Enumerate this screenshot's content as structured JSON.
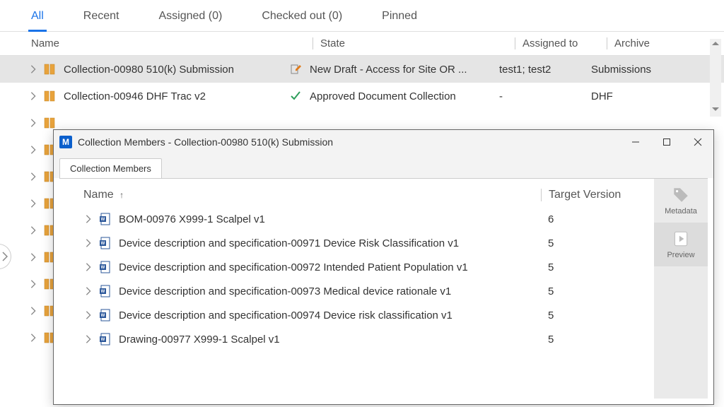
{
  "tabs": [
    {
      "label": "All",
      "active": true
    },
    {
      "label": "Recent",
      "active": false
    },
    {
      "label": "Assigned (0)",
      "active": false
    },
    {
      "label": "Checked out (0)",
      "active": false
    },
    {
      "label": "Pinned",
      "active": false
    }
  ],
  "columns": {
    "name": "Name",
    "state": "State",
    "assigned": "Assigned to",
    "archive": "Archive"
  },
  "rows": [
    {
      "name": "Collection-00980 510(k) Submission",
      "state": "New Draft - Access for Site OR ...",
      "state_kind": "draft",
      "assigned": "test1; test2",
      "archive": "Submissions",
      "selected": true
    },
    {
      "name": "Collection-00946 DHF Trac v2",
      "state": "Approved Document Collection",
      "state_kind": "approved",
      "assigned": "-",
      "archive": "DHF",
      "selected": false
    }
  ],
  "dialog": {
    "app_letter": "M",
    "title": "Collection Members - Collection-00980 510(k) Submission",
    "tab_label": "Collection Members",
    "columns": {
      "name": "Name",
      "sort": "↑",
      "target": "Target Version"
    },
    "members": [
      {
        "name": "BOM-00976 X999-1 Scalpel v1",
        "target": "6"
      },
      {
        "name": "Device description and specification-00971 Device Risk Classification v1",
        "target": "5"
      },
      {
        "name": "Device description and specification-00972 Intended Patient Population v1",
        "target": "5"
      },
      {
        "name": "Device description and specification-00973 Medical device rationale v1",
        "target": "5"
      },
      {
        "name": "Device description and specification-00974 Device risk classification v1",
        "target": "5"
      },
      {
        "name": "Drawing-00977 X999-1 Scalpel v1",
        "target": "5"
      }
    ],
    "side": {
      "metadata": "Metadata",
      "preview": "Preview"
    }
  },
  "colors": {
    "accent": "#1a73e8",
    "folder": "#e8a33d",
    "draft_icon": "#d67b1a",
    "approved_icon": "#2e9e5b",
    "word_blue": "#2b579a"
  }
}
